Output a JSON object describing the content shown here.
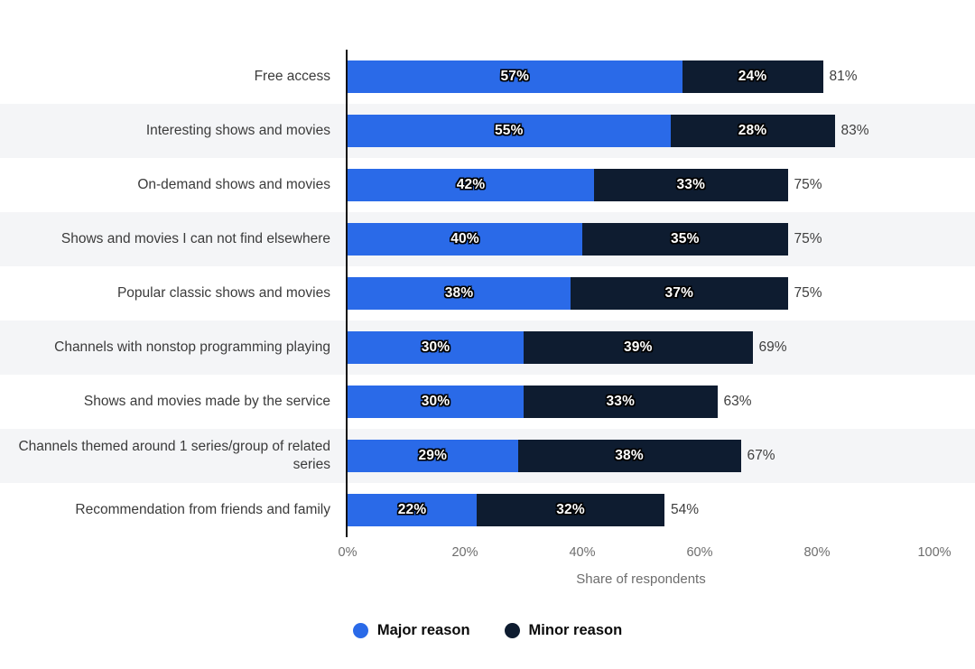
{
  "chart_data": {
    "type": "bar",
    "orientation": "horizontal-stacked",
    "title": "",
    "categories": [
      "Free access",
      "Interesting shows and movies",
      "On-demand shows and movies",
      "Shows and movies I can not find elsewhere",
      "Popular classic shows and movies",
      "Channels with nonstop programming playing",
      "Shows and movies made by the service",
      "Channels themed around 1 series/group of related series",
      "Recommendation from friends and family"
    ],
    "series": [
      {
        "name": "Major reason",
        "color": "#2a6ae8",
        "values": [
          57,
          55,
          42,
          40,
          38,
          30,
          30,
          29,
          22
        ]
      },
      {
        "name": "Minor reason",
        "color": "#0e1c30",
        "values": [
          24,
          28,
          33,
          35,
          37,
          39,
          33,
          38,
          32
        ]
      }
    ],
    "totals": [
      "81%",
      "83%",
      "75%",
      "75%",
      "75%",
      "69%",
      "63%",
      "67%",
      "54%"
    ],
    "unit": "%",
    "xlabel": "Share of respondents",
    "x_ticks": [
      "0%",
      "20%",
      "40%",
      "60%",
      "80%",
      "100%"
    ],
    "x_tick_positions": [
      0,
      20,
      40,
      60,
      80,
      100
    ],
    "xlim": [
      0,
      100
    ],
    "grid": false,
    "legend": {
      "position": "bottom",
      "items": [
        "Major reason",
        "Minor reason"
      ]
    }
  }
}
